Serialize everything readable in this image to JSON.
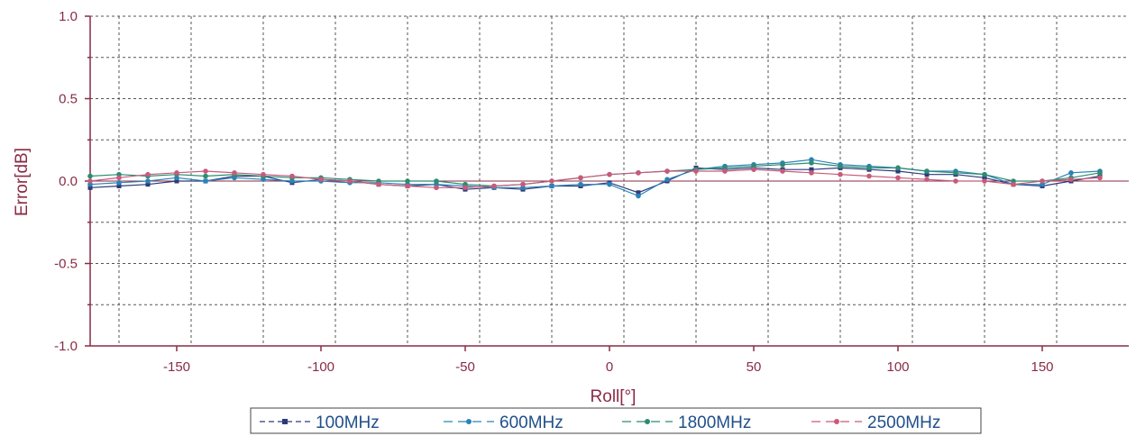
{
  "chart_data": {
    "type": "line",
    "xlabel": "Roll[°]",
    "ylabel": "Error[dB]",
    "xlim": [
      -180,
      180
    ],
    "ylim": [
      -1.0,
      1.0
    ],
    "xticks": [
      -150,
      -100,
      -50,
      0,
      50,
      100,
      150
    ],
    "yticks": [
      1.0,
      0.5,
      0.0,
      -0.5,
      -1.0
    ],
    "ytick_labels": [
      "1.0",
      "0.5",
      "0.0",
      "-0.5",
      "-1.0"
    ],
    "grid": true,
    "legend_position": "bottom",
    "x": [
      -180,
      -170,
      -160,
      -150,
      -140,
      -130,
      -120,
      -110,
      -100,
      -90,
      -80,
      -70,
      -60,
      -50,
      -40,
      -30,
      -20,
      -10,
      0,
      10,
      20,
      30,
      40,
      50,
      60,
      70,
      80,
      90,
      100,
      110,
      120,
      130,
      140,
      150,
      160,
      170
    ],
    "series": [
      {
        "name": "100MHz",
        "color": "#2d3a7a",
        "marker": "square",
        "values": [
          -0.04,
          -0.03,
          -0.02,
          0.0,
          0.0,
          0.03,
          0.03,
          -0.01,
          0.01,
          0.0,
          -0.02,
          -0.03,
          -0.02,
          -0.05,
          -0.04,
          -0.05,
          -0.03,
          -0.03,
          -0.01,
          -0.07,
          0.0,
          0.08,
          0.07,
          0.08,
          0.07,
          0.07,
          0.08,
          0.07,
          0.06,
          0.04,
          0.04,
          0.02,
          -0.02,
          -0.03,
          0.0,
          0.03
        ]
      },
      {
        "name": "600MHz",
        "color": "#2a83b8",
        "marker": "circle",
        "values": [
          -0.02,
          -0.01,
          0.0,
          0.02,
          0.0,
          0.02,
          0.01,
          0.0,
          0.0,
          -0.01,
          -0.01,
          -0.02,
          -0.02,
          -0.03,
          -0.04,
          -0.04,
          -0.03,
          -0.02,
          -0.02,
          -0.09,
          0.01,
          0.07,
          0.09,
          0.1,
          0.11,
          0.13,
          0.1,
          0.09,
          0.08,
          0.06,
          0.06,
          0.04,
          -0.02,
          -0.02,
          0.05,
          0.06
        ]
      },
      {
        "name": "1800MHz",
        "color": "#2c8c72",
        "marker": "circle",
        "values": [
          0.03,
          0.04,
          0.03,
          0.04,
          0.03,
          0.04,
          0.03,
          0.02,
          0.02,
          0.01,
          0.0,
          0.0,
          0.0,
          -0.02,
          -0.03,
          -0.02,
          0.0,
          0.02,
          0.04,
          0.05,
          0.06,
          0.07,
          0.08,
          0.09,
          0.1,
          0.11,
          0.09,
          0.08,
          0.08,
          0.06,
          0.05,
          0.04,
          0.0,
          0.0,
          0.02,
          0.05
        ]
      },
      {
        "name": "2500MHz",
        "color": "#c85a7a",
        "marker": "circle",
        "values": [
          0.0,
          0.02,
          0.04,
          0.05,
          0.06,
          0.05,
          0.04,
          0.03,
          0.01,
          0.0,
          -0.02,
          -0.03,
          -0.04,
          -0.04,
          -0.03,
          -0.02,
          0.0,
          0.02,
          0.04,
          0.05,
          0.06,
          0.06,
          0.06,
          0.07,
          0.06,
          0.05,
          0.04,
          0.03,
          0.02,
          0.01,
          0.0,
          0.0,
          -0.02,
          0.0,
          0.01,
          0.02
        ]
      }
    ]
  }
}
